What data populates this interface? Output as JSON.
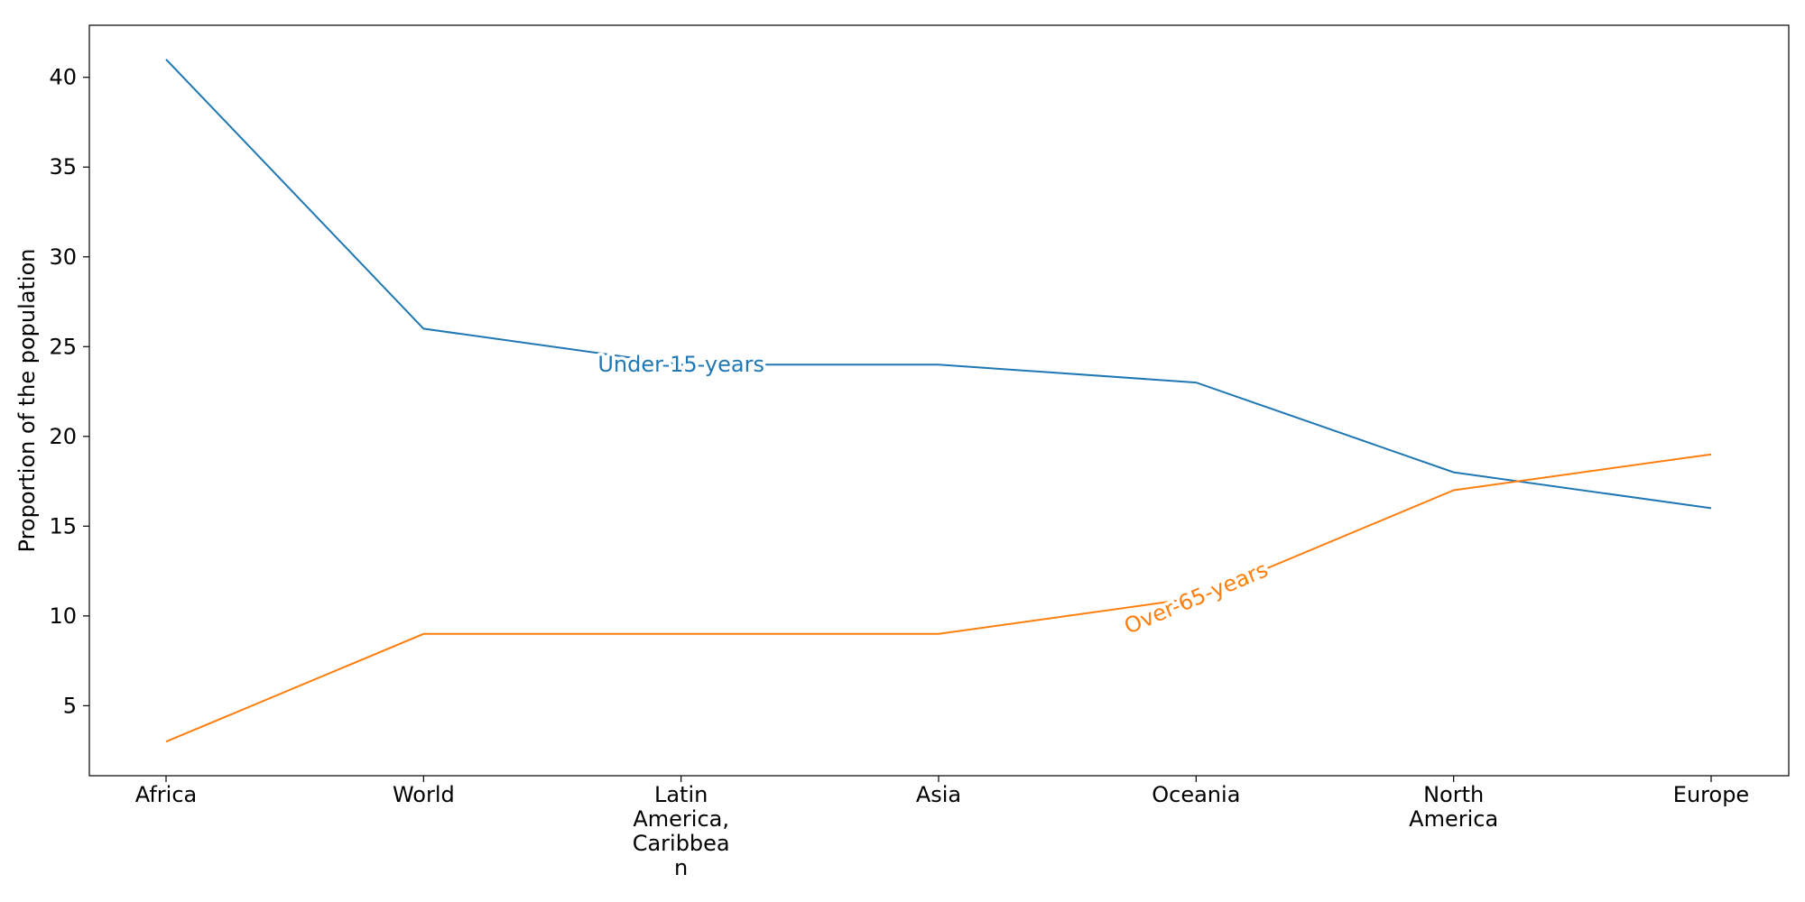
{
  "chart_data": {
    "type": "line",
    "categories": [
      "Africa",
      "World",
      "Latin America, Caribbean",
      "Asia",
      "Oceania",
      "North America",
      "Europe"
    ],
    "category_labels": [
      [
        "Africa"
      ],
      [
        "World"
      ],
      [
        "Latin",
        "America,",
        "Caribbea",
        "n"
      ],
      [
        "Asia"
      ],
      [
        "Oceania"
      ],
      [
        "North",
        "America"
      ],
      [
        "Europe"
      ]
    ],
    "series": [
      {
        "name": "Under-15-years",
        "values": [
          41,
          26,
          24,
          24,
          23,
          18,
          16
        ],
        "color": "#1f77b4"
      },
      {
        "name": "Over-65-years",
        "values": [
          3,
          9,
          9,
          9,
          11,
          17,
          19
        ],
        "color": "#ff7f0e"
      }
    ],
    "inline_labels": [
      {
        "series": "Under-15-years",
        "text": "Under-15-years",
        "at_category": 2
      },
      {
        "series": "Over-65-years",
        "text": "Over-65-years",
        "at_category": 4
      }
    ],
    "ylabel": "Proportion of the population",
    "xlabel": "",
    "ylim": [
      1.1,
      42.9
    ],
    "yticks": [
      5,
      10,
      15,
      20,
      25,
      30,
      35,
      40
    ],
    "grid": false,
    "legend": "none"
  }
}
